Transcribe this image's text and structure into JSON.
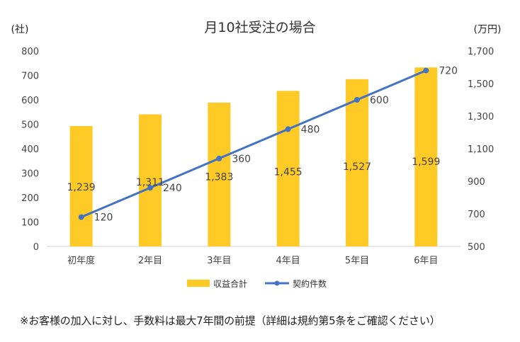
{
  "chart_data": {
    "type": "bar",
    "title": "月10社受注の場合",
    "left_axis": {
      "label": "(社)",
      "range": [
        0,
        800
      ],
      "ticks": [
        0,
        100,
        200,
        300,
        400,
        500,
        600,
        700,
        800
      ],
      "tick_labels": [
        "0",
        "100",
        "200",
        "300",
        "400",
        "500",
        "600",
        "700",
        "800"
      ]
    },
    "right_axis": {
      "label": "(万円)",
      "range": [
        500,
        1700
      ],
      "ticks": [
        500,
        700,
        900,
        1100,
        1300,
        1500,
        1700
      ],
      "tick_labels": [
        "500",
        "700",
        "900",
        "1,100",
        "1,300",
        "1,500",
        "1,700"
      ]
    },
    "categories": [
      "初年度",
      "2年目",
      "3年目",
      "4年目",
      "5年目",
      "6年目"
    ],
    "series": [
      {
        "name": "収益合計",
        "type": "bar",
        "axis": "right",
        "color": "#FFC926",
        "values": [
          1239,
          1311,
          1383,
          1455,
          1527,
          1599
        ],
        "data_labels": [
          "1,239",
          "1,311",
          "1,383",
          "1,455",
          "1,527",
          "1,599"
        ]
      },
      {
        "name": "契約件数",
        "type": "line",
        "axis": "left",
        "color": "#4472C4",
        "values": [
          120,
          240,
          360,
          480,
          600,
          720
        ],
        "data_labels": [
          "120",
          "240",
          "360",
          "480",
          "600",
          "720"
        ]
      }
    ],
    "grid": false,
    "legend_position": "bottom"
  },
  "footnote": "※お客様の加入に対し、手数料は最大7年間の前提（詳細は規約第5条をご確認ください）"
}
